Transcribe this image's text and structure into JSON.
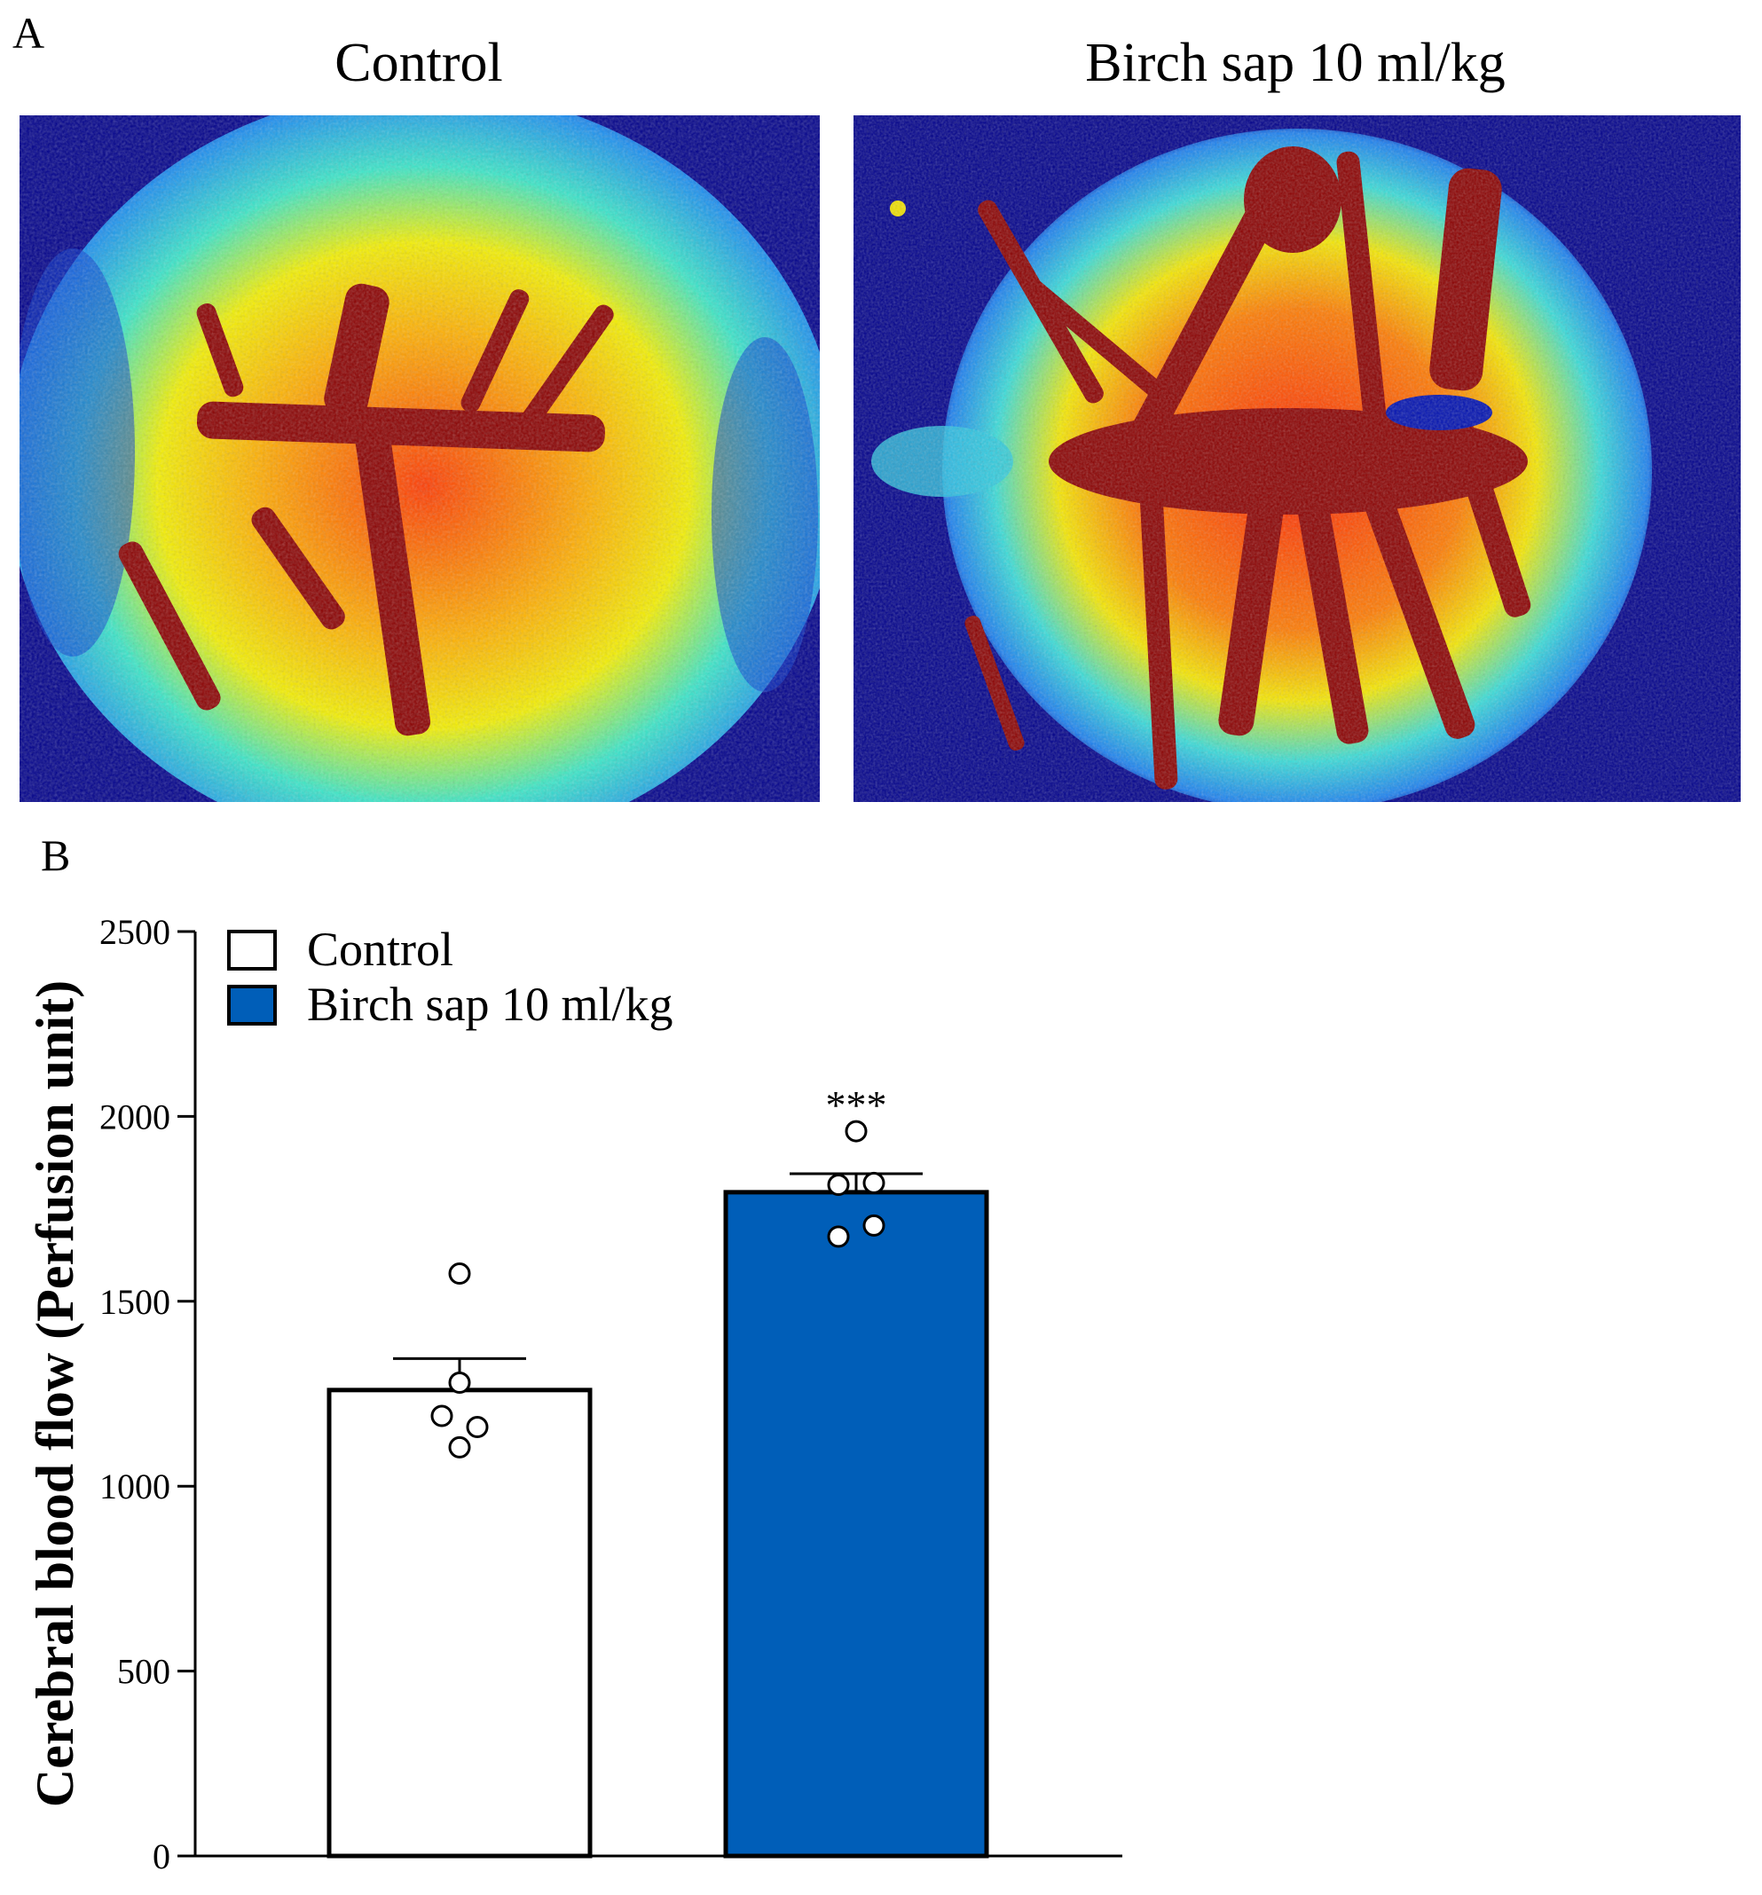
{
  "panel_a": {
    "letter": "A",
    "images": [
      {
        "title": "Control",
        "icon": "laser-speckle-perfusion-image-control"
      },
      {
        "title": "Birch sap 10 ml/kg",
        "icon": "laser-speckle-perfusion-image-birch-sap"
      }
    ]
  },
  "panel_b": {
    "letter": "B"
  },
  "chart_data": {
    "type": "bar",
    "title": "",
    "xlabel": "",
    "ylabel": "Cerebral blood flow (Perfusion unit)",
    "ylim": [
      0,
      2500
    ],
    "yticks": [
      0,
      500,
      1000,
      1500,
      2000,
      2500
    ],
    "categories": [
      "Control",
      "Birch sap 10 ml/kg"
    ],
    "values": [
      1260,
      1795
    ],
    "sem": [
      85,
      50
    ],
    "colors": [
      "#ffffff",
      "#005eb8"
    ],
    "points": [
      [
        1575,
        1280,
        1190,
        1160,
        1105
      ],
      [
        1960,
        1815,
        1820,
        1705,
        1675
      ]
    ],
    "significance": [
      "",
      "***"
    ],
    "legend": {
      "position": "top-left",
      "entries": [
        {
          "label": "Control",
          "color": "#ffffff"
        },
        {
          "label": "Birch sap 10 ml/kg",
          "color": "#005eb8"
        }
      ]
    }
  }
}
